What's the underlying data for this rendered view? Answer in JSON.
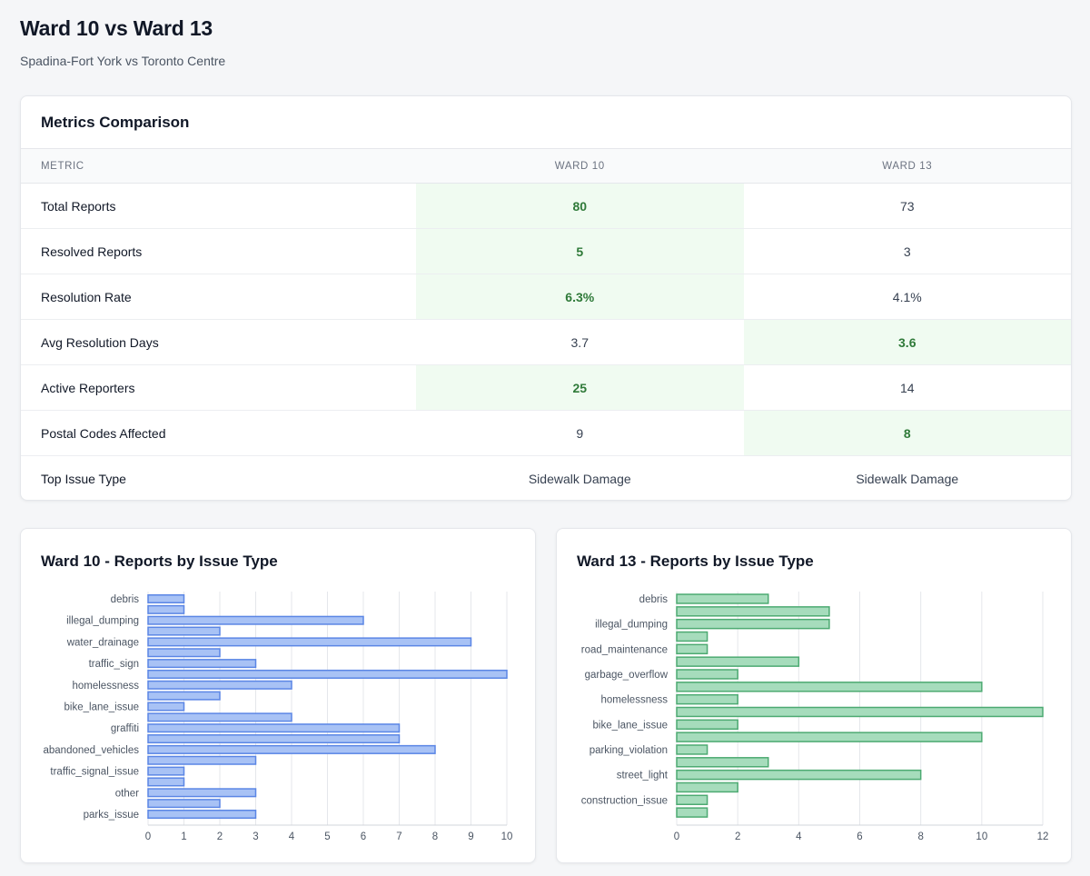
{
  "page": {
    "title": "Ward 10 vs Ward 13",
    "subtitle": "Spadina-Fort York vs Toronto Centre"
  },
  "metrics": {
    "title": "Metrics Comparison",
    "headers": {
      "metric": "METRIC",
      "ward_a": "WARD 10",
      "ward_b": "WARD 13"
    },
    "rows": [
      {
        "name": "Total Reports",
        "ward_a": "80",
        "ward_b": "73",
        "better": "a"
      },
      {
        "name": "Resolved Reports",
        "ward_a": "5",
        "ward_b": "3",
        "better": "a"
      },
      {
        "name": "Resolution Rate",
        "ward_a": "6.3%",
        "ward_b": "4.1%",
        "better": "a"
      },
      {
        "name": "Avg Resolution Days",
        "ward_a": "3.7",
        "ward_b": "3.6",
        "better": "b"
      },
      {
        "name": "Active Reporters",
        "ward_a": "25",
        "ward_b": "14",
        "better": "a"
      },
      {
        "name": "Postal Codes Affected",
        "ward_a": "9",
        "ward_b": "8",
        "better": "b"
      },
      {
        "name": "Top Issue Type",
        "ward_a": "Sidewalk Damage",
        "ward_b": "Sidewalk Damage",
        "better": ""
      }
    ],
    "highlight_bg": "#f0fbf1",
    "highlight_text": "#2f7a39"
  },
  "chart_data": [
    {
      "type": "bar",
      "orientation": "horizontal",
      "title": "Ward 10 - Reports by Issue Type",
      "categories": [
        "debris",
        "",
        "illegal_dumping",
        "",
        "water_drainage",
        "",
        "traffic_sign",
        "",
        "homelessness",
        "",
        "bike_lane_issue",
        "",
        "graffiti",
        "",
        "abandoned_vehicles",
        "",
        "traffic_signal_issue",
        "",
        "other",
        "",
        "parks_issue"
      ],
      "values": [
        1,
        1,
        6,
        2,
        9,
        2,
        3,
        10,
        4,
        2,
        1,
        4,
        7,
        7,
        8,
        3,
        1,
        1,
        3,
        2,
        3
      ],
      "xlim": [
        0,
        10
      ],
      "xticks": [
        0,
        1,
        2,
        3,
        4,
        5,
        6,
        7,
        8,
        9,
        10
      ],
      "grid": true,
      "fill": "#a8c2f5",
      "stroke": "#5b86e5"
    },
    {
      "type": "bar",
      "orientation": "horizontal",
      "title": "Ward 13 - Reports by Issue Type",
      "categories": [
        "debris",
        "",
        "illegal_dumping",
        "",
        "road_maintenance",
        "",
        "garbage_overflow",
        "",
        "homelessness",
        "",
        "bike_lane_issue",
        "",
        "parking_violation",
        "",
        "street_light",
        "",
        "construction_issue",
        ""
      ],
      "values": [
        3,
        5,
        5,
        1,
        1,
        4,
        2,
        10,
        2,
        12,
        2,
        10,
        1,
        3,
        8,
        2,
        1,
        1
      ],
      "xlim": [
        0,
        12
      ],
      "xticks": [
        0,
        2,
        4,
        6,
        8,
        10,
        12
      ],
      "grid": true,
      "fill": "#a6dcbc",
      "stroke": "#4daa72"
    }
  ]
}
